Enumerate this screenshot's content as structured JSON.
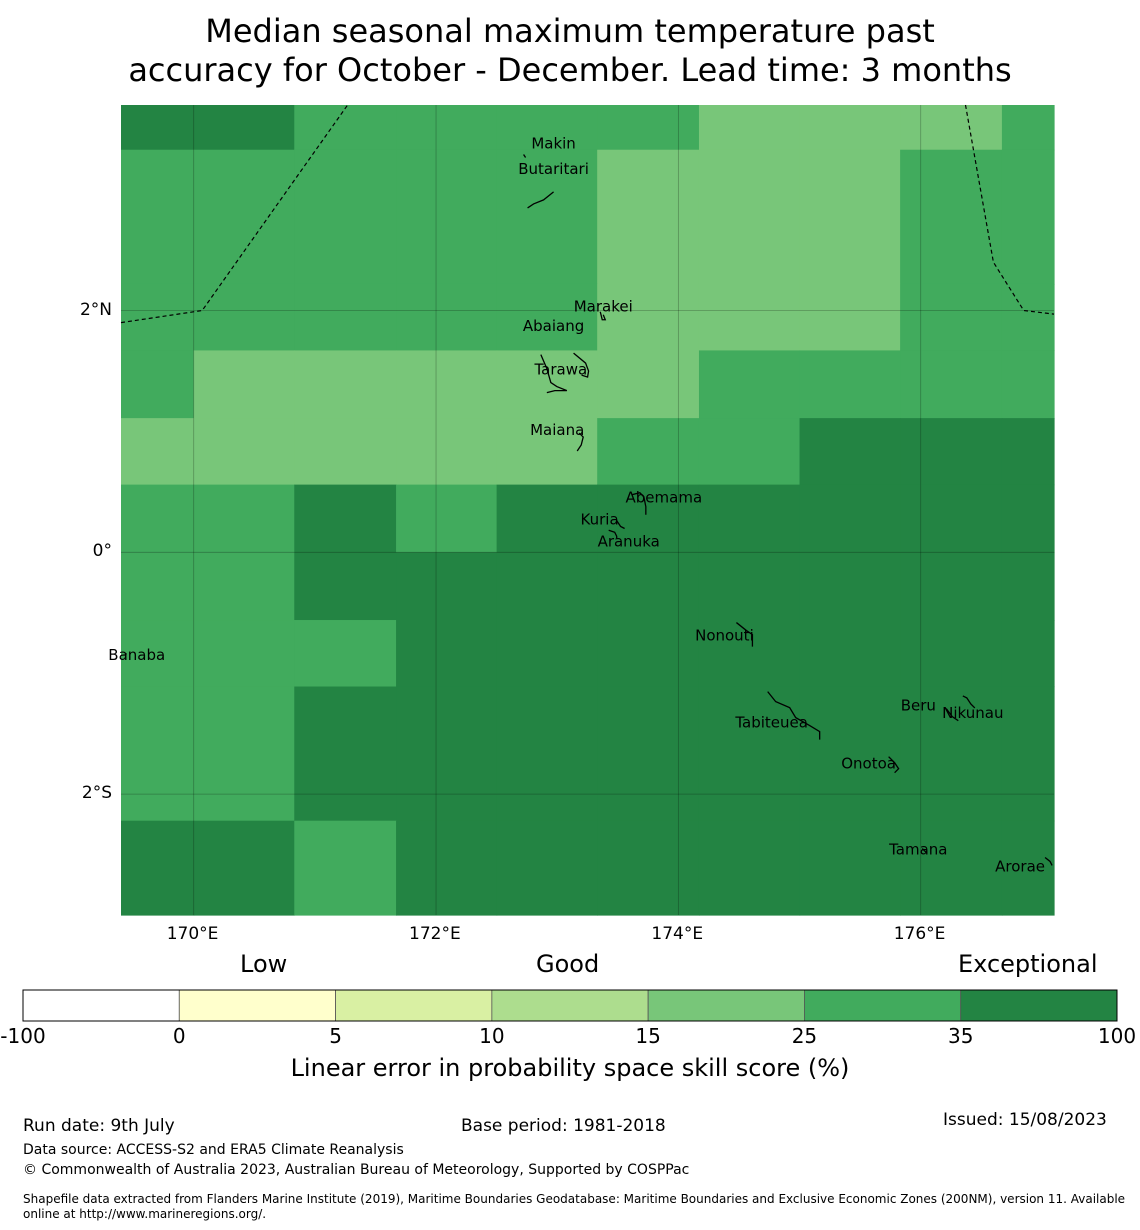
{
  "title_line1": "Median seasonal maximum temperature past",
  "title_line2": "accuracy for October - December. Lead time: 3 months",
  "map": {
    "lon_range": [
      169.4,
      177.1
    ],
    "lat_range": [
      -3.0,
      3.7
    ],
    "x_ticks": [
      {
        "value": 170,
        "label": "170°E"
      },
      {
        "value": 172,
        "label": "172°E"
      },
      {
        "value": 174,
        "label": "174°E"
      },
      {
        "value": 176,
        "label": "176°E"
      }
    ],
    "y_ticks": [
      {
        "value": 2,
        "label": "2°N"
      },
      {
        "value": 0,
        "label": "0°"
      },
      {
        "value": -2,
        "label": "2°S"
      }
    ],
    "colors": {
      "c25": "#78c679",
      "c35": "#41ab5d",
      "c100": "#238443"
    },
    "skill_grid": {
      "lon_edges": [
        169.4,
        170.0,
        170.83,
        171.67,
        172.5,
        173.33,
        174.17,
        175.0,
        175.83,
        176.67,
        177.1
      ],
      "lat_edges": [
        3.7,
        3.33,
        2.22,
        1.67,
        1.11,
        0.56,
        0.0,
        -0.56,
        -1.11,
        -2.22,
        -3.0
      ],
      "rows": [
        [
          "c100",
          "c100",
          "c35",
          "c35",
          "c35",
          "c35",
          "c25",
          "c25",
          "c25",
          "c35"
        ],
        [
          "c35",
          "c35",
          "c35",
          "c35",
          "c35",
          "c25",
          "c25",
          "c25",
          "c35",
          "c35"
        ],
        [
          "c35",
          "c35",
          "c35",
          "c35",
          "c35",
          "c25",
          "c25",
          "c25",
          "c35",
          "c35"
        ],
        [
          "c35",
          "c25",
          "c25",
          "c25",
          "c25",
          "c25",
          "c35",
          "c35",
          "c35",
          "c35"
        ],
        [
          "c25",
          "c25",
          "c25",
          "c25",
          "c25",
          "c35",
          "c35",
          "c100",
          "c100",
          "c100"
        ],
        [
          "c35",
          "c35",
          "c100",
          "c35",
          "c100",
          "c100",
          "c100",
          "c100",
          "c100",
          "c100"
        ],
        [
          "c35",
          "c35",
          "c100",
          "c100",
          "c100",
          "c100",
          "c100",
          "c100",
          "c100",
          "c100"
        ],
        [
          "c35",
          "c35",
          "c35",
          "c100",
          "c100",
          "c100",
          "c100",
          "c100",
          "c100",
          "c100"
        ],
        [
          "c35",
          "c35",
          "c100",
          "c100",
          "c100",
          "c100",
          "c100",
          "c100",
          "c100",
          "c100"
        ],
        [
          "c100",
          "c100",
          "c35",
          "c100",
          "c100",
          "c100",
          "c100",
          "c100",
          "c100",
          "c100"
        ]
      ]
    },
    "islands": [
      {
        "name": "Makin",
        "label": "Makin",
        "lon": 172.97,
        "lat": 3.34
      },
      {
        "name": "Butaritari",
        "label": "Butaritari",
        "lon": 172.97,
        "lat": 3.13
      },
      {
        "name": "Marakei",
        "label": "Marakei",
        "lon": 173.38,
        "lat": 1.99
      },
      {
        "name": "Abaiang",
        "label": "Abaiang",
        "lon": 172.97,
        "lat": 1.83
      },
      {
        "name": "Tarawa",
        "label": "Tarawa",
        "lon": 173.03,
        "lat": 1.47
      },
      {
        "name": "Maiana",
        "label": "Maiana",
        "lon": 173.0,
        "lat": 0.97
      },
      {
        "name": "Abemama",
        "label": "Abemama",
        "lon": 173.88,
        "lat": 0.41
      },
      {
        "name": "Kuria",
        "label": "Kuria",
        "lon": 173.35,
        "lat": 0.23
      },
      {
        "name": "Aranuka",
        "label": "Aranuka",
        "lon": 173.59,
        "lat": 0.05
      },
      {
        "name": "Nonouti",
        "label": "Nonouti",
        "lon": 174.38,
        "lat": -0.73
      },
      {
        "name": "Banaba",
        "label": "Banaba",
        "lon": 169.53,
        "lat": -0.89
      },
      {
        "name": "Beru",
        "label": "Beru",
        "lon": 175.98,
        "lat": -1.31
      },
      {
        "name": "Tabiteuea",
        "label": "Tabiteuea",
        "lon": 174.77,
        "lat": -1.45
      },
      {
        "name": "Nikunau",
        "label": "Nikunau",
        "lon": 176.43,
        "lat": -1.37
      },
      {
        "name": "Onotoa",
        "label": "Onotoa",
        "lon": 175.57,
        "lat": -1.79
      },
      {
        "name": "Tamana",
        "label": "Tamana",
        "lon": 175.98,
        "lat": -2.5
      },
      {
        "name": "Arorae",
        "label": "Arorae",
        "lon": 176.82,
        "lat": -2.64
      }
    ],
    "eez_boundaries": [
      [
        [
          169.4,
          1.9
        ],
        [
          170.07,
          2.0
        ],
        [
          171.27,
          3.7
        ]
      ],
      [
        [
          176.37,
          3.7
        ],
        [
          176.6,
          2.4
        ],
        [
          176.85,
          2.0
        ],
        [
          177.1,
          1.97
        ]
      ]
    ]
  },
  "colorbar": {
    "headers": {
      "low": "Low",
      "good": "Good",
      "exceptional": "Exceptional"
    },
    "bins": [
      {
        "from": -100,
        "to": 0,
        "color": "#ffffff"
      },
      {
        "from": 0,
        "to": 5,
        "color": "#ffffcc"
      },
      {
        "from": 5,
        "to": 10,
        "color": "#d9f0a3"
      },
      {
        "from": 10,
        "to": 15,
        "color": "#addd8e"
      },
      {
        "from": 15,
        "to": 25,
        "color": "#78c679"
      },
      {
        "from": 25,
        "to": 35,
        "color": "#41ab5d"
      },
      {
        "from": 35,
        "to": 100,
        "color": "#238443"
      }
    ],
    "tick_labels": [
      "-100",
      "0",
      "5",
      "10",
      "15",
      "25",
      "35",
      "100"
    ],
    "title": "Linear error in probability space skill score (%)"
  },
  "footer": {
    "run_date": "Run date: 9th July",
    "base_period": "Base period: 1981-2018",
    "issued": "Issued: 15/08/2023",
    "data_source": "Data source: ACCESS-S2 and ERA5 Climate Reanalysis",
    "copyright": "© Commonwealth of Australia 2023, Australian Bureau of Meteorology, Supported by COSPPac",
    "shapefile_line1": "Shapefile data extracted from Flanders Marine Institute (2019), Maritime Boundaries Geodatabase: Maritime Boundaries and Exclusive Economic Zones (200NM), version 11. Available",
    "shapefile_line2": "online at http://www.marineregions.org/."
  }
}
